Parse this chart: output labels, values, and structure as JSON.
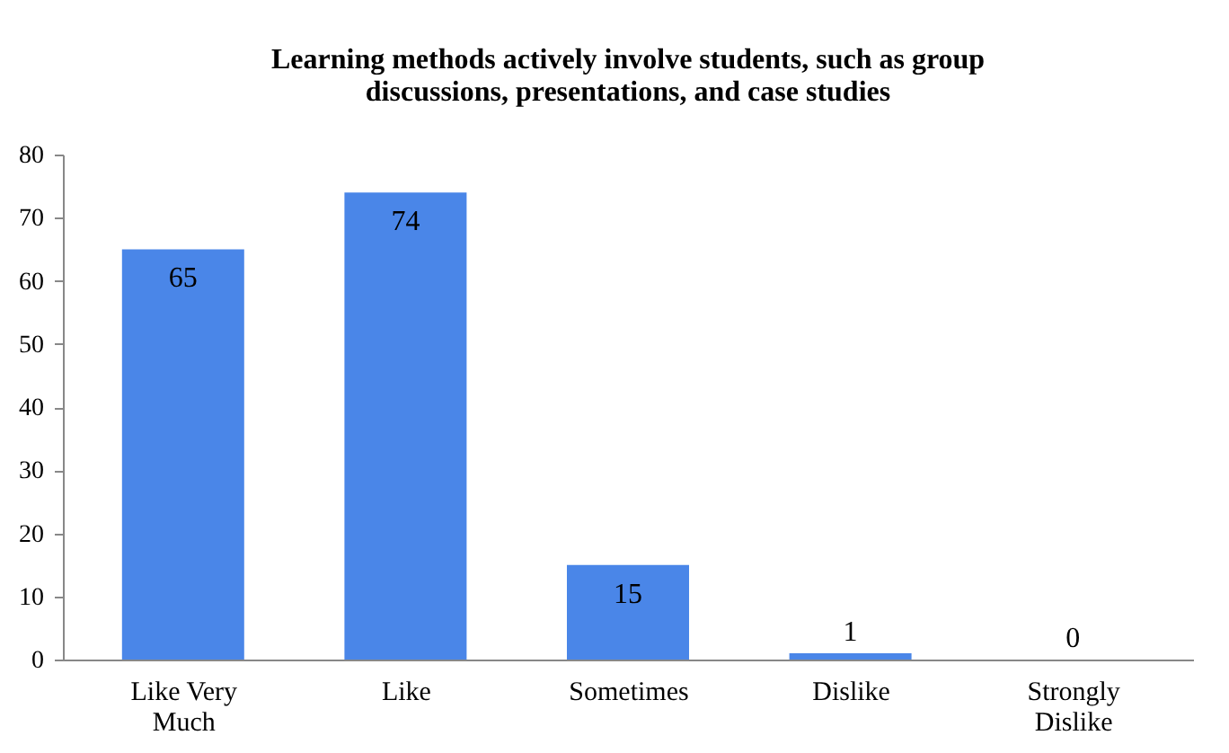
{
  "chart_data": {
    "type": "bar",
    "title": "Learning methods actively involve students, such as group discussions, presentations, and case studies",
    "categories": [
      "Like Very Much",
      "Like",
      "Sometimes",
      "Dislike",
      "Strongly Dislike"
    ],
    "values": [
      65,
      74,
      15,
      1,
      0
    ],
    "color": "#4a86e8",
    "ylim": [
      0,
      80
    ],
    "yticks": [
      0,
      10,
      20,
      30,
      40,
      50,
      60,
      70,
      80
    ],
    "grid": false,
    "data_labels": true
  }
}
